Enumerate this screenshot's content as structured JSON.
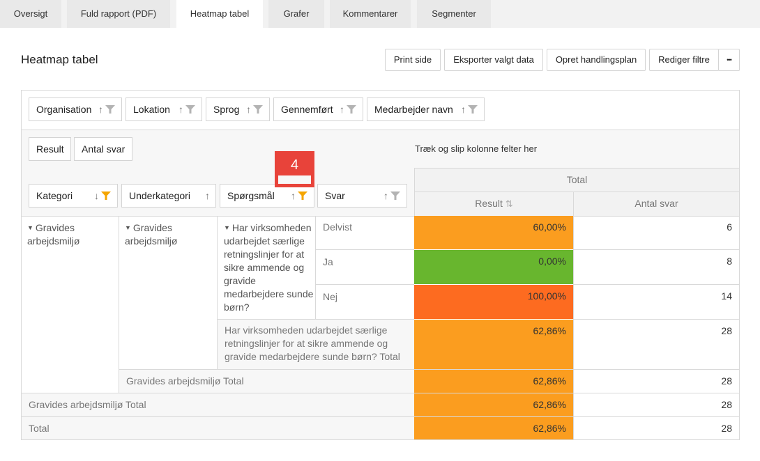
{
  "tabs": [
    {
      "label": "Oversigt"
    },
    {
      "label": "Fuld rapport (PDF)"
    },
    {
      "label": "Heatmap tabel"
    },
    {
      "label": "Grafer"
    },
    {
      "label": "Kommentarer"
    },
    {
      "label": "Segmenter"
    }
  ],
  "page": {
    "title": "Heatmap tabel"
  },
  "toolbar": {
    "print": "Print side",
    "export": "Eksporter valgt data",
    "action_plan": "Opret handlingsplan",
    "edit_filters": "Rediger filtre",
    "more": "•••"
  },
  "filter_fields": [
    "Organisation",
    "Lokation",
    "Sprog",
    "Gennemført",
    "Medarbejder navn"
  ],
  "data_fields": [
    "Result",
    "Antal svar"
  ],
  "drop_hint": "Træk og slip kolonne felter her",
  "row_fields": [
    "Kategori",
    "Underkategori",
    "Spørgsmål",
    "Svar"
  ],
  "badge": "4",
  "header": {
    "total": "Total",
    "result": "Result",
    "antal": "Antal svar"
  },
  "rows": {
    "kategori": "Gravides arbejdsmiljø",
    "underkategori": "Gravides arbejdsmiljø",
    "question": "Har virksomheden udarbejdet særlige retningslinjer for at sikre ammende og gravide medarbejdere sunde børn?",
    "answers": [
      {
        "label": "Delvist",
        "result": "60,00%",
        "antal": "6",
        "color": "#fb9d1f"
      },
      {
        "label": "Ja",
        "result": "0,00%",
        "antal": "8",
        "color": "#68b62e"
      },
      {
        "label": "Nej",
        "result": "100,00%",
        "antal": "14",
        "color": "#fd6b20"
      }
    ],
    "question_total": {
      "label": "Har virksomheden udarbejdet særlige retningslinjer for at sikre ammende og gravide medarbejdere sunde børn? Total",
      "result": "62,86%",
      "antal": "28"
    },
    "sub_total": {
      "label": "Gravides arbejdsmiljø Total",
      "result": "62,86%",
      "antal": "28"
    },
    "cat_total": {
      "label": "Gravides arbejdsmiljø Total",
      "result": "62,86%",
      "antal": "28"
    },
    "grand_total": {
      "label": "Total",
      "result": "62,86%",
      "antal": "28"
    }
  },
  "colors": {
    "total_orange": "#fb9d1f",
    "badge_red": "#e8433a",
    "funnel_active": "#f5a500"
  }
}
